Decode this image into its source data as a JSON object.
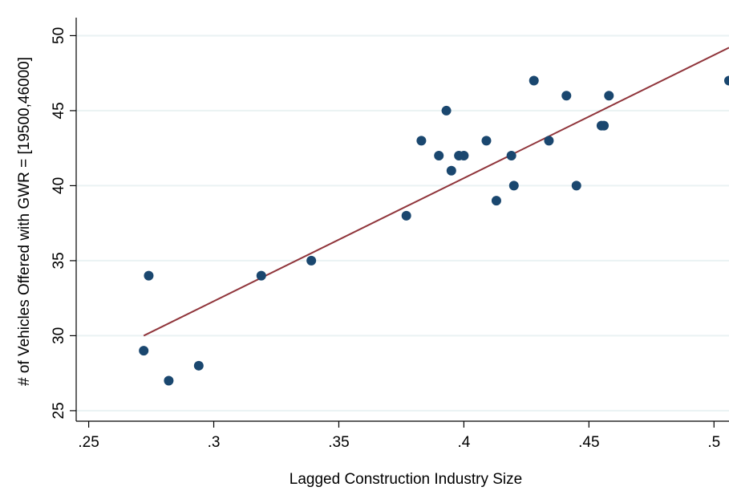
{
  "chart_data": {
    "type": "scatter",
    "xlabel": "Lagged Construction Industry Size",
    "ylabel": "# of Vehicles Offered with GWR = [19500,46000]",
    "xlim": [
      0.245,
      0.506
    ],
    "ylim": [
      24.3,
      51.2
    ],
    "x_ticks": [
      0.25,
      0.3,
      0.35,
      0.4,
      0.45,
      0.5
    ],
    "x_tick_labels": [
      ".25",
      ".3",
      ".35",
      ".4",
      ".45",
      ".5"
    ],
    "y_ticks": [
      25,
      30,
      35,
      40,
      45,
      50
    ],
    "y_tick_labels": [
      "25",
      "30",
      "35",
      "40",
      "45",
      "50"
    ],
    "grid": "horizontal",
    "legend": "none",
    "series": [
      {
        "kind": "scatter",
        "color": "#1a476f",
        "points": [
          {
            "x": 0.272,
            "y": 29
          },
          {
            "x": 0.274,
            "y": 34
          },
          {
            "x": 0.282,
            "y": 27
          },
          {
            "x": 0.294,
            "y": 28
          },
          {
            "x": 0.319,
            "y": 34
          },
          {
            "x": 0.339,
            "y": 35
          },
          {
            "x": 0.377,
            "y": 38
          },
          {
            "x": 0.383,
            "y": 43
          },
          {
            "x": 0.39,
            "y": 42
          },
          {
            "x": 0.393,
            "y": 45
          },
          {
            "x": 0.395,
            "y": 41
          },
          {
            "x": 0.398,
            "y": 42
          },
          {
            "x": 0.4,
            "y": 42
          },
          {
            "x": 0.409,
            "y": 43
          },
          {
            "x": 0.413,
            "y": 39
          },
          {
            "x": 0.419,
            "y": 42
          },
          {
            "x": 0.42,
            "y": 40
          },
          {
            "x": 0.428,
            "y": 47
          },
          {
            "x": 0.434,
            "y": 43
          },
          {
            "x": 0.441,
            "y": 46
          },
          {
            "x": 0.445,
            "y": 40
          },
          {
            "x": 0.455,
            "y": 44
          },
          {
            "x": 0.456,
            "y": 44
          },
          {
            "x": 0.458,
            "y": 46
          },
          {
            "x": 0.506,
            "y": 47
          }
        ]
      },
      {
        "kind": "fit-line",
        "color": "#90353b",
        "points": [
          {
            "x": 0.272,
            "y": 30.0
          },
          {
            "x": 0.506,
            "y": 49.2
          }
        ]
      }
    ],
    "colors": {
      "grid": "#eaf2f3",
      "axis": "#000000",
      "marker": "#1a476f",
      "fit_line": "#90353b"
    }
  }
}
